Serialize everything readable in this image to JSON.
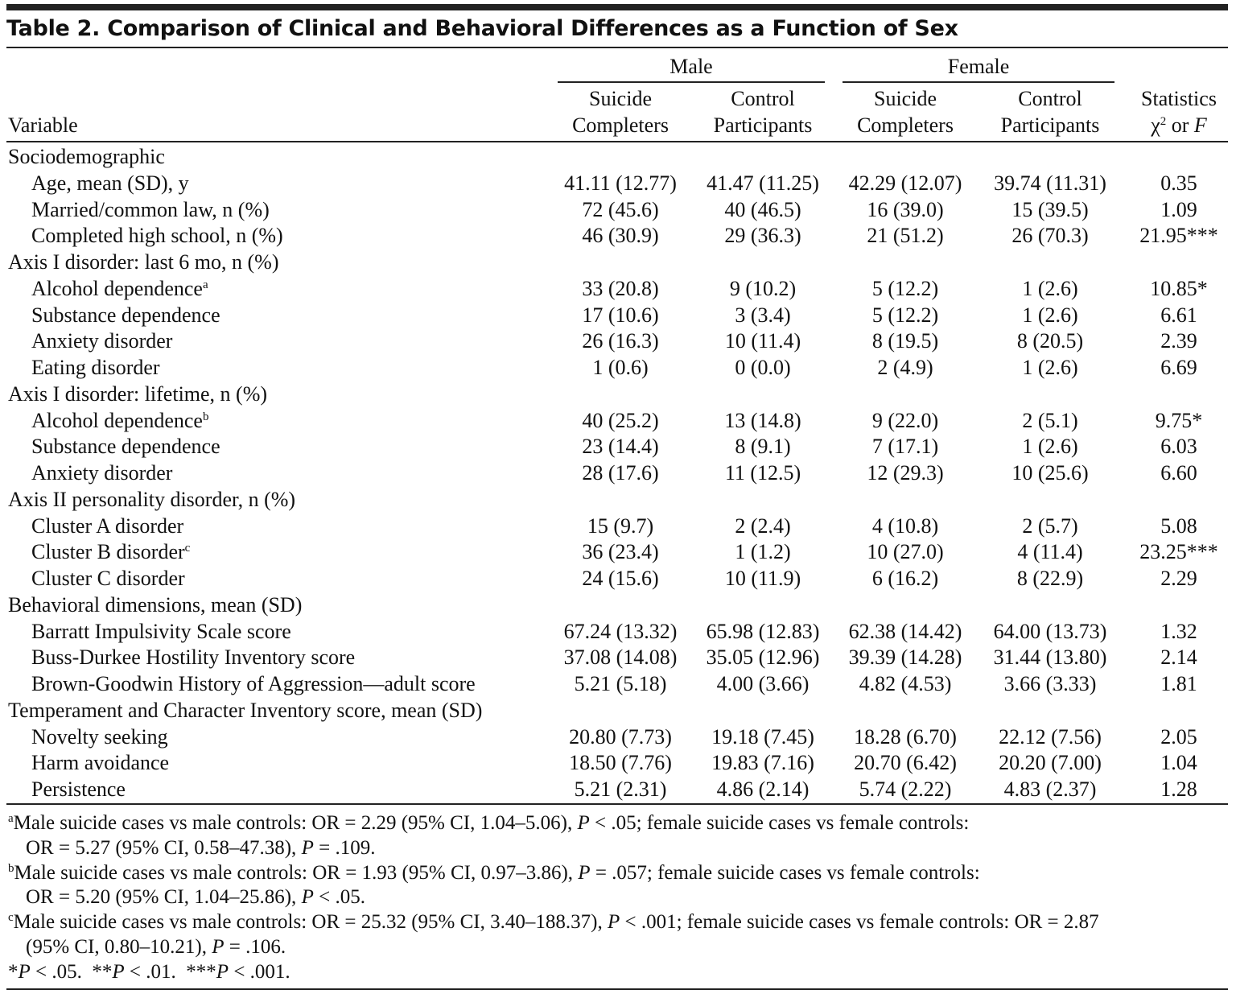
{
  "title": "Table 2. Comparison of Clinical and Behavioral Differences as a Function of Sex",
  "table": {
    "group_headers": [
      "Male",
      "Female"
    ],
    "variable_header": "Variable",
    "columns": [
      [
        "Suicide",
        "Completers"
      ],
      [
        "Control",
        "Participants"
      ],
      [
        "Suicide",
        "Completers"
      ],
      [
        "Control",
        "Participants"
      ]
    ],
    "stat_header": {
      "line1": "Statistics",
      "chi": "χ",
      "sup": "2",
      "or": " or ",
      "f": "F"
    },
    "rows": [
      {
        "label": "Sociodemographic"
      },
      {
        "label": "Age, mean (SD), y",
        "values": [
          "41.11 (12.77)",
          "41.47 (11.25)",
          "42.29 (12.07)",
          "39.74 (11.31)"
        ],
        "stat": "0.35"
      },
      {
        "label": "Married/common law, n (%)",
        "values": [
          "72 (45.6)",
          "40 (46.5)",
          "16 (39.0)",
          "15 (39.5)"
        ],
        "stat": "1.09"
      },
      {
        "label": "Completed high school, n (%)",
        "values": [
          "46 (30.9)",
          "29 (36.3)",
          "21 (51.2)",
          "26 (70.3)"
        ],
        "stat": "21.95***"
      },
      {
        "label": "Axis I disorder: last 6 mo, n (%)"
      },
      {
        "label": "Alcohol dependence",
        "note": "a",
        "values": [
          "33 (20.8)",
          "9 (10.2)",
          "5 (12.2)",
          "1 (2.6)"
        ],
        "stat": "10.85*"
      },
      {
        "label": "Substance dependence",
        "values": [
          "17 (10.6)",
          "3 (3.4)",
          "5 (12.2)",
          "1 (2.6)"
        ],
        "stat": "6.61"
      },
      {
        "label": "Anxiety disorder",
        "values": [
          "26 (16.3)",
          "10 (11.4)",
          "8 (19.5)",
          "8 (20.5)"
        ],
        "stat": "2.39"
      },
      {
        "label": "Eating disorder",
        "values": [
          "1 (0.6)",
          "0 (0.0)",
          "2 (4.9)",
          "1 (2.6)"
        ],
        "stat": "6.69"
      },
      {
        "label": "Axis I disorder: lifetime, n (%)"
      },
      {
        "label": "Alcohol dependence",
        "note": "b",
        "values": [
          "40 (25.2)",
          "13 (14.8)",
          "9 (22.0)",
          "2 (5.1)"
        ],
        "stat": "9.75*"
      },
      {
        "label": "Substance dependence",
        "values": [
          "23 (14.4)",
          "8 (9.1)",
          "7 (17.1)",
          "1 (2.6)"
        ],
        "stat": "6.03"
      },
      {
        "label": "Anxiety disorder",
        "values": [
          "28 (17.6)",
          "11 (12.5)",
          "12 (29.3)",
          "10 (25.6)"
        ],
        "stat": "6.60"
      },
      {
        "label": "Axis II personality disorder, n (%)"
      },
      {
        "label": "Cluster A disorder",
        "values": [
          "15 (9.7)",
          "2 (2.4)",
          "4 (10.8)",
          "2 (5.7)"
        ],
        "stat": "5.08"
      },
      {
        "label": "Cluster B disorder",
        "note": "c",
        "values": [
          "36 (23.4)",
          "1 (1.2)",
          "10 (27.0)",
          "4 (11.4)"
        ],
        "stat": "23.25***"
      },
      {
        "label": "Cluster C disorder",
        "values": [
          "24 (15.6)",
          "10 (11.9)",
          "6 (16.2)",
          "8 (22.9)"
        ],
        "stat": "2.29"
      },
      {
        "label": "Behavioral dimensions, mean (SD)"
      },
      {
        "label": "Barratt Impulsivity Scale score",
        "values": [
          "67.24 (13.32)",
          "65.98 (12.83)",
          "62.38 (14.42)",
          "64.00 (13.73)"
        ],
        "stat": "1.32"
      },
      {
        "label": "Buss-Durkee Hostility Inventory score",
        "values": [
          "37.08 (14.08)",
          "35.05 (12.96)",
          "39.39 (14.28)",
          "31.44 (13.80)"
        ],
        "stat": "2.14"
      },
      {
        "label": "Brown-Goodwin History of Aggression—adult score",
        "values": [
          "5.21 (5.18)",
          "4.00 (3.66)",
          "4.82 (4.53)",
          "3.66 (3.33)"
        ],
        "stat": "1.81"
      },
      {
        "label": "Temperament and Character Inventory score, mean (SD)"
      },
      {
        "label": "Novelty seeking",
        "values": [
          "20.80 (7.73)",
          "19.18 (7.45)",
          "18.28 (6.70)",
          "22.12 (7.56)"
        ],
        "stat": "2.05"
      },
      {
        "label": "Harm avoidance",
        "values": [
          "18.50 (7.76)",
          "19.83 (7.16)",
          "20.70 (6.42)",
          "20.20 (7.00)"
        ],
        "stat": "1.04"
      },
      {
        "label": "Persistence",
        "values": [
          "5.21 (2.31)",
          "4.86 (2.14)",
          "5.74 (2.22)",
          "4.83 (2.37)"
        ],
        "stat": "1.28"
      }
    ]
  },
  "footnotes": [
    [
      {
        "t": "a",
        "sup": true
      },
      {
        "t": "Male suicide cases vs male controls: OR = 2.29 (95% CI, 1.04–5.06), "
      },
      {
        "t": "P",
        "i": true
      },
      {
        "t": " < .05; female suicide cases vs female controls:"
      }
    ],
    [
      {
        "t": "OR = 5.27 (95% CI, 0.58–47.38), "
      },
      {
        "t": "P",
        "i": true
      },
      {
        "t": " = .109."
      }
    ],
    [
      {
        "t": "b",
        "sup": true
      },
      {
        "t": "Male suicide cases vs male controls: OR = 1.93 (95% CI, 0.97–3.86), "
      },
      {
        "t": "P",
        "i": true
      },
      {
        "t": " = .057; female suicide cases vs female controls:"
      }
    ],
    [
      {
        "t": "OR = 5.20 (95% CI, 1.04–25.86), "
      },
      {
        "t": "P",
        "i": true
      },
      {
        "t": " < .05."
      }
    ],
    [
      {
        "t": "c",
        "sup": true
      },
      {
        "t": "Male suicide cases vs male controls: OR = 25.32 (95% CI, 3.40–188.37), "
      },
      {
        "t": "P",
        "i": true
      },
      {
        "t": " < .001; female suicide cases vs female controls: OR = 2.87"
      }
    ],
    [
      {
        "t": "(95% CI, 0.80–10.21), "
      },
      {
        "t": "P",
        "i": true
      },
      {
        "t": " = .106."
      }
    ],
    [
      {
        "t": "*"
      },
      {
        "t": "P",
        "i": true
      },
      {
        "t": " < .05.  **"
      },
      {
        "t": "P",
        "i": true
      },
      {
        "t": " < .01.  ***"
      },
      {
        "t": "P",
        "i": true
      },
      {
        "t": " < .001."
      }
    ]
  ]
}
